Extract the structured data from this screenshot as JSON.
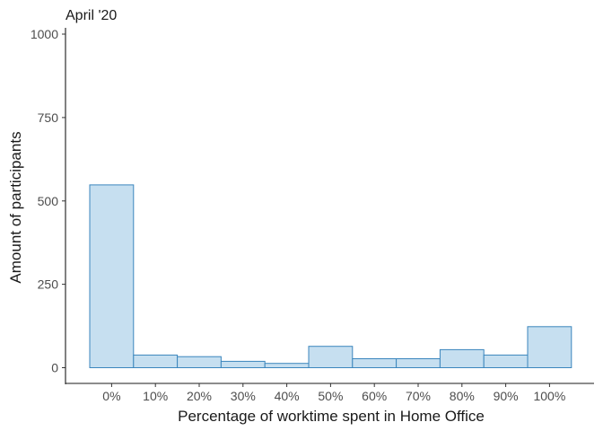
{
  "chart_data": {
    "type": "bar",
    "title": "April '20",
    "xlabel": "Percentage of worktime spent in Home Office",
    "ylabel": "Amount of participants",
    "categories": [
      "0%",
      "10%",
      "20%",
      "30%",
      "40%",
      "50%",
      "60%",
      "70%",
      "80%",
      "90%",
      "100%"
    ],
    "values": [
      548,
      38,
      33,
      19,
      13,
      64,
      27,
      27,
      54,
      38,
      123
    ],
    "ylim": [
      0,
      1000
    ],
    "yticks": [
      0,
      250,
      500,
      750,
      1000
    ],
    "grid": false,
    "legend": "none",
    "colors": {
      "bar_fill": "#c6dff0",
      "bar_stroke": "#3b86bd",
      "axis": "#1a1a1a"
    }
  }
}
